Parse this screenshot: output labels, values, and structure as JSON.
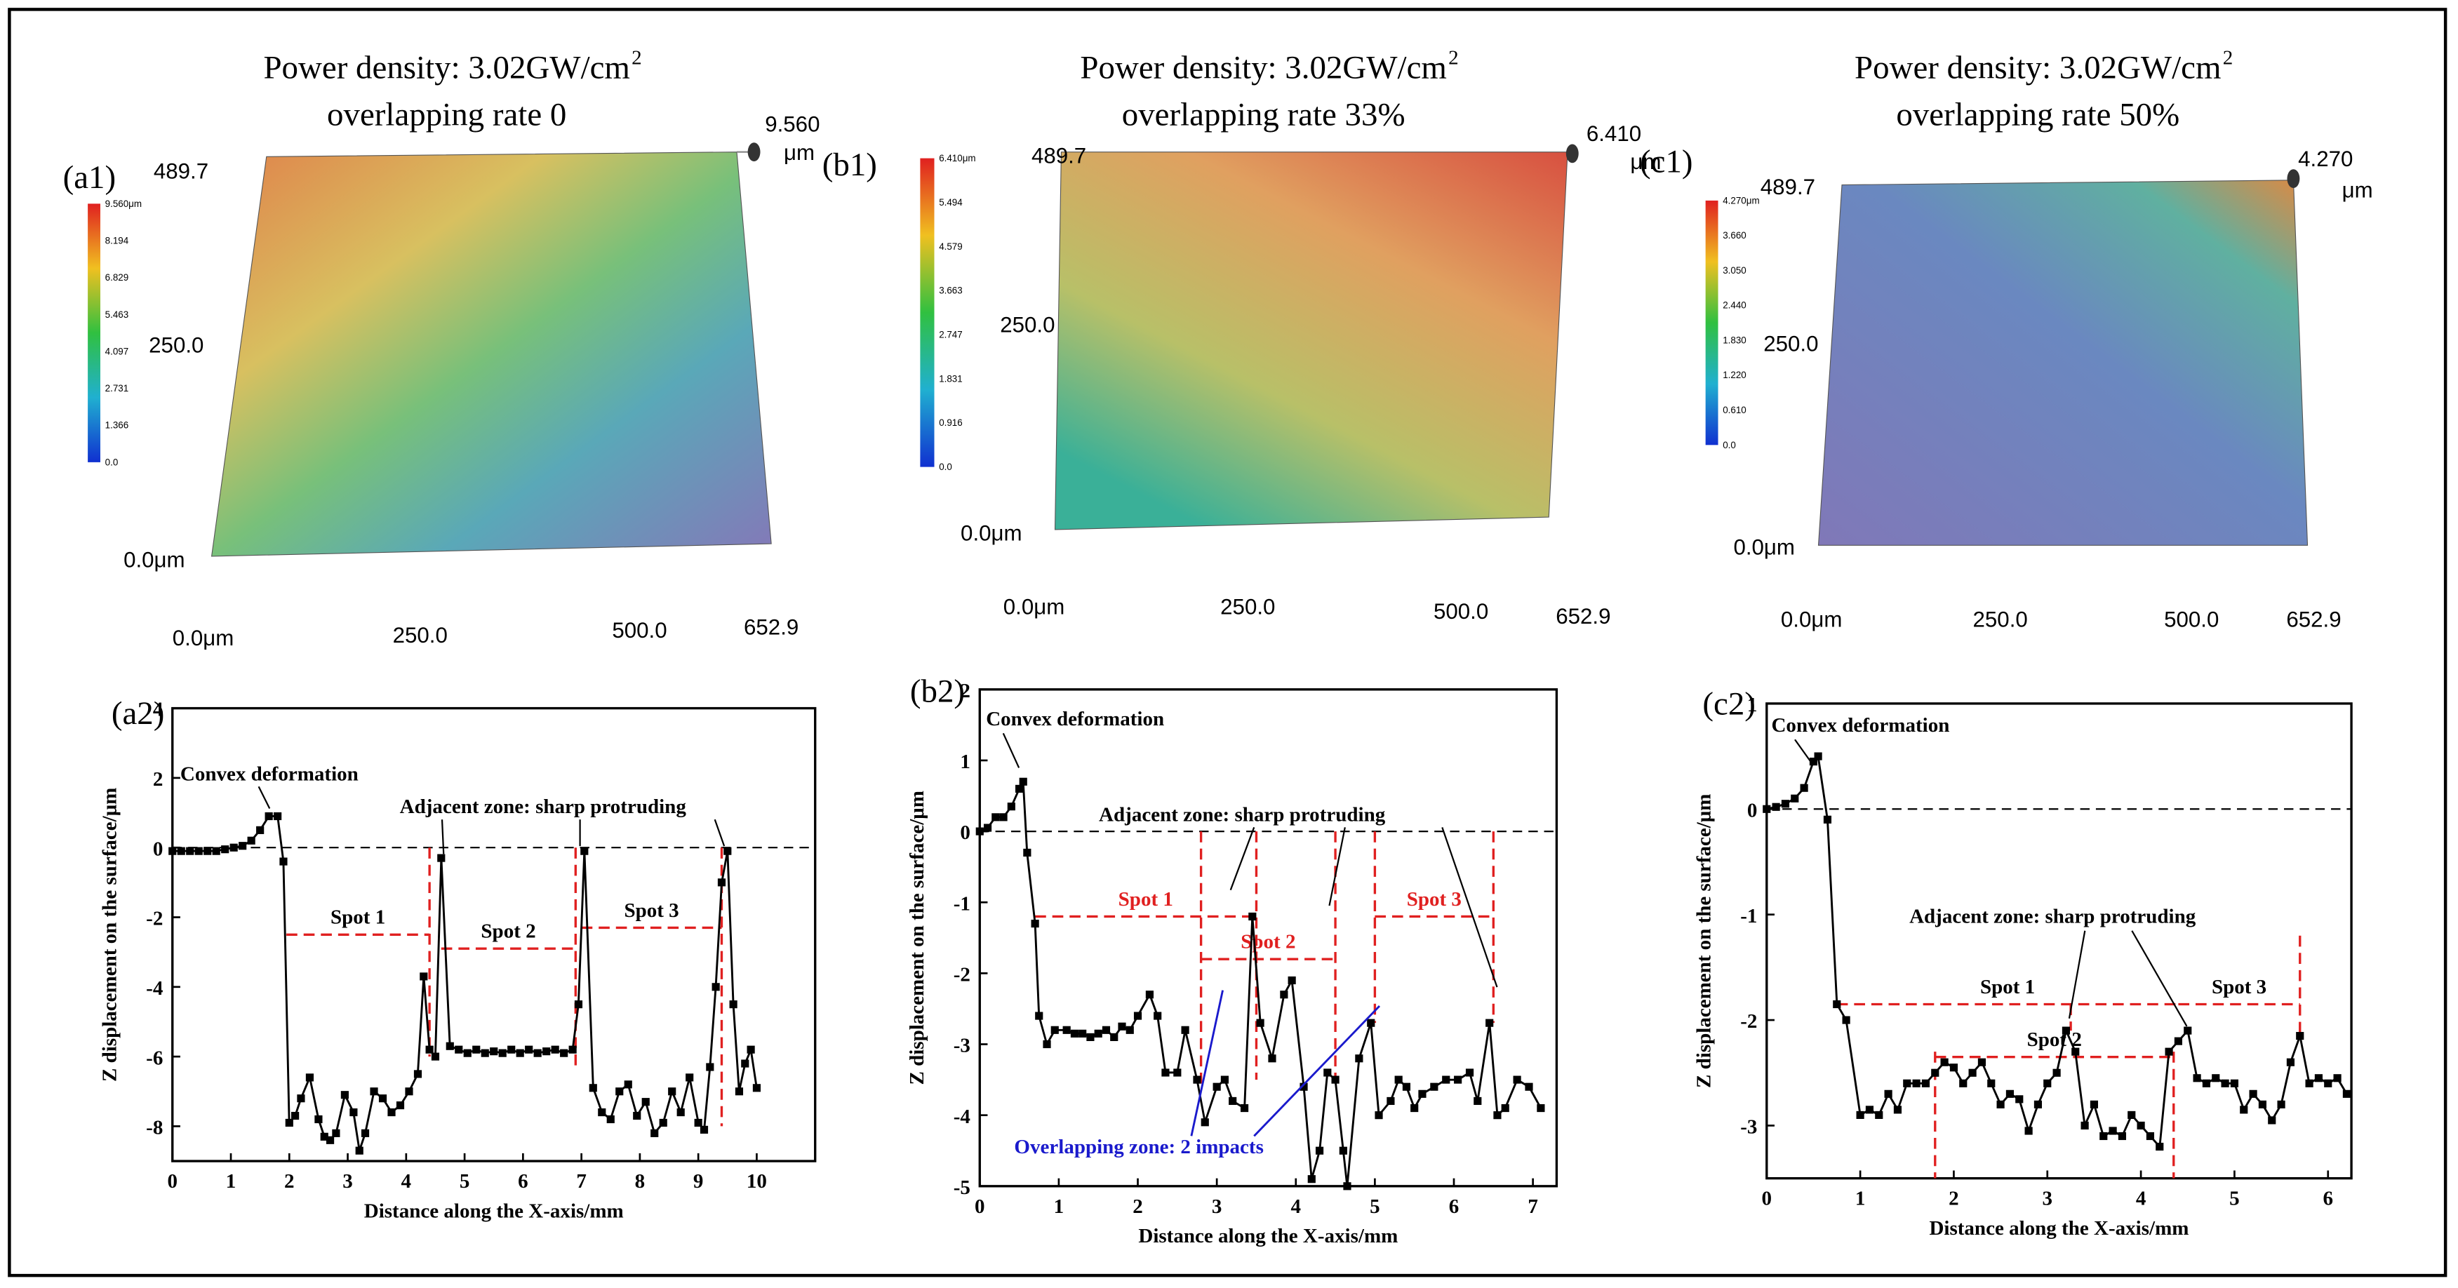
{
  "surface_maps": [
    {
      "panel": "(a1)",
      "title_lines": [
        "Power density: 3.02GW/cm",
        "overlapping rate 0"
      ],
      "title_sup": "2",
      "y_labels": [
        "489.7",
        "250.0",
        "0.0μm"
      ],
      "x_labels": [
        "0.0μm",
        "250.0",
        "500.0",
        "652.9"
      ],
      "max_value": "9.560",
      "max_unit": "μm",
      "colorbar_labels": [
        "9.560μm",
        "8.194",
        "6.829",
        "5.463",
        "4.097",
        "2.731",
        "1.366",
        "0.0"
      ]
    },
    {
      "panel": "(b1)",
      "title_lines": [
        "Power density: 3.02GW/cm",
        "overlapping rate 33%"
      ],
      "title_sup": "2",
      "y_labels": [
        "489.7",
        "250.0",
        "0.0μm"
      ],
      "x_labels": [
        "0.0μm",
        "250.0",
        "500.0",
        "652.9"
      ],
      "max_value": "6.410",
      "max_unit": "μm",
      "colorbar_labels": [
        "6.410μm",
        "5.494",
        "4.579",
        "3.663",
        "2.747",
        "1.831",
        "0.916",
        "0.0"
      ]
    },
    {
      "panel": "(c1)",
      "title_lines": [
        "Power density: 3.02GW/cm",
        "overlapping rate 50%"
      ],
      "title_sup": "2",
      "y_labels": [
        "489.7",
        "250.0",
        "0.0μm"
      ],
      "x_labels": [
        "0.0μm",
        "250.0",
        "500.0",
        "652.9"
      ],
      "max_value": "4.270",
      "max_unit": "μm",
      "colorbar_labels": [
        "4.270μm",
        "3.660",
        "3.050",
        "2.440",
        "1.830",
        "1.220",
        "0.610",
        "0.0"
      ]
    }
  ],
  "chart_data": [
    {
      "type": "line",
      "panel": "(a2)",
      "x_label": "Distance along the X-axis/mm",
      "y_label": "Z displacement on the surface/μm",
      "xlim": [
        0,
        11
      ],
      "xticks": [
        0,
        1,
        2,
        3,
        4,
        5,
        6,
        7,
        8,
        9,
        10
      ],
      "ylim": [
        -9,
        4
      ],
      "yticks": [
        4,
        2,
        0,
        -2,
        -4,
        -6,
        -8
      ],
      "reference_y": 0,
      "series": [
        {
          "color": "#000000",
          "x": [
            0,
            0.15,
            0.3,
            0.45,
            0.6,
            0.75,
            0.9,
            1.05,
            1.2,
            1.35,
            1.5,
            1.65,
            1.8,
            1.9,
            2.0,
            2.1,
            2.2,
            2.35,
            2.5,
            2.6,
            2.7,
            2.8,
            2.95,
            3.1,
            3.2,
            3.3,
            3.45,
            3.6,
            3.75,
            3.9,
            4.05,
            4.2,
            4.3,
            4.4,
            4.5,
            4.6,
            4.75,
            4.9,
            5.05,
            5.2,
            5.35,
            5.5,
            5.65,
            5.8,
            5.95,
            6.1,
            6.25,
            6.4,
            6.55,
            6.7,
            6.85,
            6.95,
            7.05,
            7.2,
            7.35,
            7.5,
            7.65,
            7.8,
            7.95,
            8.1,
            8.25,
            8.4,
            8.55,
            8.7,
            8.85,
            9.0,
            9.1,
            9.2,
            9.3,
            9.4,
            9.5,
            9.6,
            9.7,
            9.8,
            9.9,
            10.0
          ],
          "values": [
            -0.1,
            -0.1,
            -0.1,
            -0.1,
            -0.1,
            -0.1,
            -0.05,
            0,
            0.05,
            0.2,
            0.5,
            0.9,
            0.9,
            -0.4,
            -7.9,
            -7.7,
            -7.2,
            -6.6,
            -7.8,
            -8.3,
            -8.4,
            -8.2,
            -7.1,
            -7.6,
            -8.7,
            -8.2,
            -7.0,
            -7.2,
            -7.6,
            -7.4,
            -7.0,
            -6.5,
            -3.7,
            -5.8,
            -6.0,
            -0.3,
            -5.7,
            -5.8,
            -5.9,
            -5.8,
            -5.9,
            -5.85,
            -5.9,
            -5.8,
            -5.9,
            -5.8,
            -5.9,
            -5.85,
            -5.8,
            -5.9,
            -5.8,
            -4.5,
            -0.1,
            -6.9,
            -7.6,
            -7.8,
            -7.0,
            -6.8,
            -7.7,
            -7.3,
            -8.2,
            -7.9,
            -7.0,
            -7.6,
            -6.6,
            -7.9,
            -8.1,
            -6.3,
            -4.0,
            -1.0,
            -0.1,
            -4.5,
            -7.0,
            -6.2,
            -5.8,
            -6.9
          ]
        }
      ],
      "spots": [
        {
          "label": "Spot 1",
          "y": -2.5,
          "x": [
            1.95,
            4.4
          ]
        },
        {
          "label": "Spot 2",
          "y": -2.9,
          "x": [
            4.6,
            6.9
          ]
        },
        {
          "label": "Spot 3",
          "y": -2.3,
          "x": [
            7.0,
            9.4
          ]
        }
      ],
      "vlines": [
        {
          "x": 4.4,
          "y": [
            0,
            -6
          ]
        },
        {
          "x": 6.9,
          "y": [
            0,
            -6.3
          ]
        },
        {
          "x": 9.4,
          "y": [
            0,
            -8
          ]
        }
      ],
      "annotations": [
        {
          "text": "Convex deformation",
          "color": "#000000"
        },
        {
          "text": "Adjacent zone: sharp protruding",
          "color": "#000000"
        }
      ]
    },
    {
      "type": "line",
      "panel": "(b2)",
      "x_label": "Distance along the X-axis/mm",
      "y_label": "Z displacement on the surface/μm",
      "xlim": [
        0,
        7.3
      ],
      "xticks": [
        0,
        1,
        2,
        3,
        4,
        5,
        6,
        7
      ],
      "ylim": [
        -5,
        2
      ],
      "yticks": [
        2,
        1,
        0,
        -1,
        -2,
        -3,
        -4,
        -5
      ],
      "reference_y": 0,
      "series": [
        {
          "color": "#000000",
          "x": [
            0,
            0.1,
            0.2,
            0.3,
            0.4,
            0.5,
            0.55,
            0.6,
            0.7,
            0.75,
            0.85,
            0.95,
            1.1,
            1.2,
            1.3,
            1.4,
            1.5,
            1.6,
            1.7,
            1.8,
            1.9,
            2.0,
            2.15,
            2.25,
            2.35,
            2.5,
            2.6,
            2.75,
            2.85,
            3.0,
            3.1,
            3.2,
            3.35,
            3.45,
            3.55,
            3.7,
            3.85,
            3.95,
            4.1,
            4.2,
            4.3,
            4.4,
            4.5,
            4.6,
            4.65,
            4.8,
            4.95,
            5.05,
            5.2,
            5.3,
            5.4,
            5.5,
            5.6,
            5.75,
            5.9,
            6.05,
            6.2,
            6.3,
            6.45,
            6.55,
            6.65,
            6.8,
            6.95,
            7.1
          ],
          "values": [
            0,
            0.05,
            0.2,
            0.2,
            0.35,
            0.6,
            0.7,
            -0.3,
            -1.3,
            -2.6,
            -3.0,
            -2.8,
            -2.8,
            -2.85,
            -2.85,
            -2.9,
            -2.85,
            -2.8,
            -2.9,
            -2.75,
            -2.8,
            -2.6,
            -2.3,
            -2.6,
            -3.4,
            -3.4,
            -2.8,
            -3.5,
            -4.1,
            -3.6,
            -3.5,
            -3.8,
            -3.9,
            -1.2,
            -2.7,
            -3.2,
            -2.3,
            -2.1,
            -3.6,
            -4.9,
            -4.5,
            -3.4,
            -3.5,
            -4.5,
            -5.0,
            -3.2,
            -2.7,
            -4.0,
            -3.8,
            -3.5,
            -3.6,
            -3.9,
            -3.7,
            -3.6,
            -3.5,
            -3.5,
            -3.4,
            -3.8,
            -2.7,
            -4.0,
            -3.9,
            -3.5,
            -3.6,
            -3.9
          ]
        }
      ],
      "spots": [
        {
          "label": "Spot 1",
          "y": -1.2,
          "x": [
            0.7,
            3.5
          ]
        },
        {
          "label": "Spot 2",
          "y": -1.8,
          "x": [
            2.8,
            4.5
          ]
        },
        {
          "label": "Spot 3",
          "y": -1.2,
          "x": [
            5.0,
            6.5
          ]
        }
      ],
      "vlines": [
        {
          "x": 2.8,
          "y": [
            0,
            -3.6
          ]
        },
        {
          "x": 3.5,
          "y": [
            0,
            -3.5
          ]
        },
        {
          "x": 4.5,
          "y": [
            0,
            -3.5
          ]
        },
        {
          "x": 5.0,
          "y": [
            0,
            -2.7
          ]
        },
        {
          "x": 6.5,
          "y": [
            0,
            -2.7
          ]
        }
      ],
      "annotations": [
        {
          "text": "Convex deformation",
          "color": "#000000"
        },
        {
          "text": "Adjacent zone: sharp protruding",
          "color": "#000000"
        },
        {
          "text": "Overlapping zone: 2 impacts",
          "color": "#1a1acc"
        }
      ]
    },
    {
      "type": "line",
      "panel": "(c2)",
      "x_label": "Distance along the X-axis/mm",
      "y_label": "Z displacement on the surface/μm",
      "xlim": [
        0,
        6.25
      ],
      "xticks": [
        0,
        1,
        2,
        3,
        4,
        5,
        6
      ],
      "ylim": [
        -3.5,
        1
      ],
      "yticks": [
        1,
        0,
        -1,
        -2,
        -3
      ],
      "reference_y": 0,
      "series": [
        {
          "color": "#000000",
          "x": [
            0,
            0.1,
            0.2,
            0.3,
            0.4,
            0.5,
            0.55,
            0.65,
            0.75,
            0.85,
            1,
            1.1,
            1.2,
            1.3,
            1.4,
            1.5,
            1.6,
            1.7,
            1.8,
            1.9,
            2,
            2.1,
            2.2,
            2.3,
            2.4,
            2.5,
            2.6,
            2.7,
            2.8,
            2.9,
            3,
            3.1,
            3.2,
            3.3,
            3.4,
            3.5,
            3.6,
            3.7,
            3.8,
            3.9,
            4,
            4.1,
            4.2,
            4.3,
            4.4,
            4.5,
            4.6,
            4.7,
            4.8,
            4.9,
            5,
            5.1,
            5.2,
            5.3,
            5.4,
            5.5,
            5.6,
            5.7,
            5.8,
            5.9,
            6,
            6.1,
            6.2
          ],
          "values": [
            0,
            0.02,
            0.05,
            0.1,
            0.2,
            0.45,
            0.5,
            -0.1,
            -1.85,
            -2.0,
            -2.9,
            -2.85,
            -2.9,
            -2.7,
            -2.85,
            -2.6,
            -2.6,
            -2.6,
            -2.5,
            -2.4,
            -2.45,
            -2.6,
            -2.5,
            -2.4,
            -2.6,
            -2.8,
            -2.7,
            -2.75,
            -3.05,
            -2.8,
            -2.6,
            -2.5,
            -2.1,
            -2.3,
            -3.0,
            -2.8,
            -3.1,
            -3.05,
            -3.1,
            -2.9,
            -3.0,
            -3.1,
            -3.2,
            -2.3,
            -2.2,
            -2.1,
            -2.55,
            -2.6,
            -2.55,
            -2.6,
            -2.6,
            -2.85,
            -2.7,
            -2.8,
            -2.95,
            -2.8,
            -2.4,
            -2.15,
            -2.6,
            -2.55,
            -2.6,
            -2.55,
            -2.7
          ]
        }
      ],
      "spots": [
        {
          "label": "Spot 1",
          "y": -1.85,
          "x": [
            0.75,
            4.4
          ]
        },
        {
          "label": "Spot 2",
          "y": -2.35,
          "x": [
            1.8,
            4.35
          ]
        },
        {
          "label": "Spot 3",
          "y": -1.85,
          "x": [
            4.4,
            5.7
          ]
        }
      ],
      "vlines": [
        {
          "x": 1.8,
          "y": [
            -2.3,
            -3.5
          ]
        },
        {
          "x": 3.25,
          "y": [
            -1.85,
            -2.1
          ]
        },
        {
          "x": 4.35,
          "y": [
            -2.3,
            -3.5
          ]
        },
        {
          "x": 5.7,
          "y": [
            -1.2,
            -2.15
          ]
        }
      ],
      "annotations": [
        {
          "text": "Convex deformation",
          "color": "#000000"
        },
        {
          "text": "Adjacent zone: sharp protruding",
          "color": "#000000"
        }
      ]
    }
  ]
}
